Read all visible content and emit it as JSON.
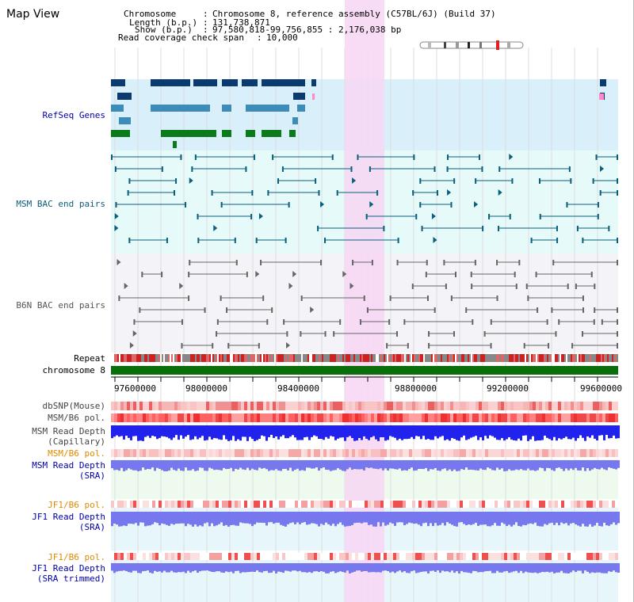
{
  "title": "Map View",
  "info": {
    "chromosome_label": "Chromosome",
    "chromosome_value": "Chromosome 8, reference assembly (C57BL/6J) (Build 37)",
    "length_label": "Length (b.p.)",
    "length_value": "131,738,871",
    "show_label": "Show (b.p.)",
    "show_value": "97,580,818-99,756,855 : 2,176,038 bp",
    "span_label": "Read coverage check span",
    "span_value": "10,000"
  },
  "tracks": {
    "refseq": "RefSeq Genes",
    "msm_bac": "MSM BAC end pairs",
    "b6n_bac": "B6N BAC end pairs",
    "repeat": "Repeat",
    "chromosome": "chromosome 8",
    "dbsnp": "dbSNP(Mouse)",
    "msm_b6_pol": "MSM/B6 pol.",
    "msm_depth_cap_1": "MSM Read Depth",
    "msm_depth_cap_2": "(Capillary)",
    "msm_b6_pol_2": "MSM/B6 pol.",
    "msm_depth_sra_1": "MSM Read Depth",
    "msm_depth_sra_2": "(SRA)",
    "jf1_b6_pol": "JF1/B6 pol.",
    "jf1_depth_sra_1": "JF1 Read Depth",
    "jf1_depth_sra_2": "(SRA)",
    "jf1_b6_pol_2": "JF1/B6 pol.",
    "jf1_depth_trim_1": "JF1 Read Depth",
    "jf1_depth_trim_2": "(SRA trimmed)"
  },
  "axis_ticks": [
    "97600000",
    "98000000",
    "98400000",
    "98800000",
    "99200000",
    "99600000"
  ],
  "colors": {
    "highlight": "#f7d6f3",
    "refseq_bg": "#d9f0fa",
    "msm_bg": "#e6fafa",
    "b6n_bg": "#f4f4f8",
    "gene_dark": "#0b3a6e",
    "gene_mid": "#3d8cb8",
    "gene_green": "#0a7a1a",
    "msm_line": "#0a5f7a",
    "b6n_line": "#666666",
    "chrom_green": "#0a6e0a",
    "depth_blue": "#2222ee",
    "depth_light": "#7777ee",
    "orange_label": "#e08a00",
    "label_blue": "#0000aa"
  }
}
